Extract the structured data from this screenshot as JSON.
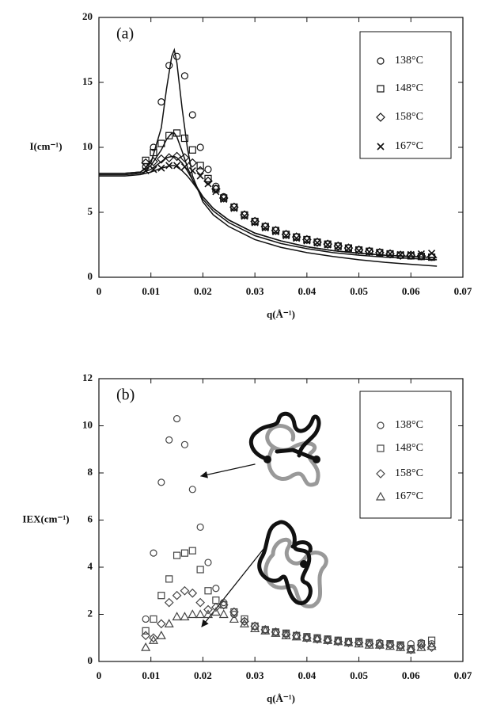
{
  "chart_data": [
    {
      "type": "scatter",
      "annotation": "(a)",
      "x_label": "q(Å⁻¹)",
      "y_label": "I(cm⁻¹)",
      "xlim": [
        0,
        0.07
      ],
      "xticks": [
        0,
        0.01,
        0.02,
        0.03,
        0.04,
        0.05,
        0.06,
        0.07
      ],
      "ylim": [
        0,
        20
      ],
      "yticks": [
        0,
        5,
        10,
        15,
        20
      ],
      "grid": false,
      "legend": "upper right",
      "x": [
        0.009,
        0.0105,
        0.012,
        0.0135,
        0.015,
        0.0165,
        0.018,
        0.0195,
        0.021,
        0.0225,
        0.024,
        0.026,
        0.028,
        0.03,
        0.032,
        0.034,
        0.036,
        0.038,
        0.04,
        0.042,
        0.044,
        0.046,
        0.048,
        0.05,
        0.052,
        0.054,
        0.056,
        0.058,
        0.06,
        0.062,
        0.064
      ],
      "series": [
        {
          "name": "138°C",
          "marker": "circle",
          "color": "#111",
          "values": [
            8.5,
            10,
            13.5,
            16.3,
            17,
            15.5,
            12.5,
            10,
            8.3,
            7,
            6.2,
            5.4,
            4.8,
            4.3,
            3.9,
            3.6,
            3.3,
            3.1,
            2.9,
            2.7,
            2.55,
            2.4,
            2.25,
            2.1,
            2.0,
            1.9,
            1.8,
            1.7,
            1.65,
            1.6,
            1.55
          ]
        },
        {
          "name": "148°C",
          "marker": "square",
          "color": "#111",
          "values": [
            9,
            9.6,
            10.3,
            10.9,
            11.1,
            10.7,
            9.8,
            8.6,
            7.6,
            6.8,
            6.1,
            5.4,
            4.8,
            4.3,
            3.9,
            3.6,
            3.3,
            3.1,
            2.9,
            2.7,
            2.55,
            2.4,
            2.25,
            2.1,
            2.0,
            1.9,
            1.8,
            1.7,
            1.65,
            1.6,
            1.55
          ]
        },
        {
          "name": "158°C",
          "marker": "diamond",
          "color": "#111",
          "values": [
            8.8,
            8.9,
            9.1,
            9.2,
            9.3,
            9.2,
            8.8,
            8.2,
            7.4,
            6.8,
            6.1,
            5.4,
            4.8,
            4.3,
            3.9,
            3.6,
            3.3,
            3.1,
            2.9,
            2.7,
            2.55,
            2.4,
            2.25,
            2.1,
            2.0,
            1.9,
            1.8,
            1.7,
            1.7,
            1.65,
            1.6
          ]
        },
        {
          "name": "167°C",
          "marker": "cross",
          "color": "#111",
          "values": [
            8.2,
            8.3,
            8.4,
            8.6,
            8.6,
            8.5,
            8.2,
            7.8,
            7.2,
            6.6,
            6.0,
            5.3,
            4.7,
            4.2,
            3.8,
            3.5,
            3.2,
            3.0,
            2.8,
            2.65,
            2.5,
            2.35,
            2.2,
            2.05,
            1.95,
            1.85,
            1.8,
            1.75,
            1.75,
            1.8,
            1.85
          ]
        }
      ],
      "line_x": [
        0,
        0.005,
        0.008,
        0.01,
        0.012,
        0.013,
        0.014,
        0.0145,
        0.015,
        0.016,
        0.017,
        0.018,
        0.02,
        0.022,
        0.025,
        0.03,
        0.035,
        0.04,
        0.045,
        0.05,
        0.055,
        0.06,
        0.065
      ],
      "lines": [
        {
          "color": "#111",
          "values": [
            8.0,
            8.0,
            8.1,
            8.8,
            11.5,
            14.5,
            17,
            17.5,
            16.5,
            13,
            10,
            7.8,
            5.8,
            4.8,
            3.9,
            2.9,
            2.3,
            1.9,
            1.6,
            1.35,
            1.15,
            1.0,
            0.85
          ]
        },
        {
          "color": "#111",
          "values": [
            8.0,
            8.0,
            8.1,
            8.6,
            9.8,
            10.6,
            11.1,
            11.1,
            10.8,
            9.7,
            8.5,
            7.5,
            6.0,
            5.1,
            4.2,
            3.2,
            2.6,
            2.2,
            1.9,
            1.7,
            1.55,
            1.45,
            1.35
          ]
        },
        {
          "color": "#111",
          "values": [
            7.9,
            7.9,
            8.0,
            8.3,
            8.9,
            9.2,
            9.3,
            9.3,
            9.2,
            8.8,
            8.2,
            7.5,
            6.2,
            5.3,
            4.4,
            3.4,
            2.8,
            2.35,
            2.05,
            1.85,
            1.7,
            1.6,
            1.5
          ]
        },
        {
          "color": "#111",
          "values": [
            7.8,
            7.8,
            7.9,
            8.1,
            8.4,
            8.5,
            8.6,
            8.6,
            8.5,
            8.2,
            7.8,
            7.3,
            6.2,
            5.3,
            4.4,
            3.4,
            2.8,
            2.35,
            2.05,
            1.85,
            1.7,
            1.6,
            1.5
          ]
        }
      ]
    },
    {
      "type": "scatter",
      "annotation": "(b)",
      "x_label": "q(Å⁻¹)",
      "y_label": "IEX(cm⁻¹)",
      "xlim": [
        0,
        0.07
      ],
      "xticks": [
        0,
        0.01,
        0.02,
        0.03,
        0.04,
        0.05,
        0.06,
        0.07
      ],
      "ylim": [
        0,
        12
      ],
      "yticks": [
        0,
        2,
        4,
        6,
        8,
        10,
        12
      ],
      "grid": false,
      "legend": "upper right",
      "x": [
        0.009,
        0.0105,
        0.012,
        0.0135,
        0.015,
        0.0165,
        0.018,
        0.0195,
        0.021,
        0.0225,
        0.024,
        0.026,
        0.028,
        0.03,
        0.032,
        0.034,
        0.036,
        0.038,
        0.04,
        0.042,
        0.044,
        0.046,
        0.048,
        0.05,
        0.052,
        0.054,
        0.056,
        0.058,
        0.06,
        0.062,
        0.064
      ],
      "series": [
        {
          "name": "138°C",
          "marker": "circle",
          "color": "#444",
          "values": [
            1.8,
            4.6,
            7.6,
            9.4,
            10.3,
            9.2,
            7.3,
            5.7,
            4.2,
            3.1,
            2.5,
            2.0,
            1.7,
            1.5,
            1.35,
            1.25,
            1.2,
            1.1,
            1.05,
            1.0,
            0.95,
            0.9,
            0.85,
            0.85,
            0.8,
            0.8,
            0.75,
            0.7,
            0.75,
            0.8,
            0.75
          ]
        },
        {
          "name": "148°C",
          "marker": "square",
          "color": "#444",
          "values": [
            1.3,
            1.8,
            2.8,
            3.5,
            4.5,
            4.6,
            4.7,
            3.9,
            3.0,
            2.6,
            2.4,
            2.1,
            1.8,
            1.5,
            1.35,
            1.25,
            1.2,
            1.1,
            1.05,
            1.0,
            0.95,
            0.9,
            0.85,
            0.85,
            0.8,
            0.75,
            0.75,
            0.7,
            0.55,
            0.75,
            0.9
          ]
        },
        {
          "name": "158°C",
          "marker": "diamond",
          "color": "#444",
          "values": [
            1.1,
            1.0,
            1.6,
            2.5,
            2.8,
            3.0,
            2.9,
            2.5,
            2.2,
            2.3,
            2.4,
            2.1,
            1.7,
            1.5,
            1.35,
            1.25,
            1.15,
            1.1,
            1.0,
            0.95,
            0.9,
            0.85,
            0.8,
            0.8,
            0.75,
            0.7,
            0.7,
            0.65,
            0.5,
            0.7,
            0.6
          ]
        },
        {
          "name": "167°C",
          "marker": "triangle",
          "color": "#444",
          "values": [
            0.6,
            0.9,
            1.1,
            1.6,
            1.9,
            1.9,
            2.0,
            2.0,
            2.0,
            2.1,
            2.0,
            1.8,
            1.6,
            1.4,
            1.3,
            1.2,
            1.1,
            1.05,
            1.0,
            0.95,
            0.9,
            0.85,
            0.8,
            0.75,
            0.7,
            0.7,
            0.65,
            0.6,
            0.5,
            0.6,
            0.65
          ]
        }
      ]
    }
  ]
}
